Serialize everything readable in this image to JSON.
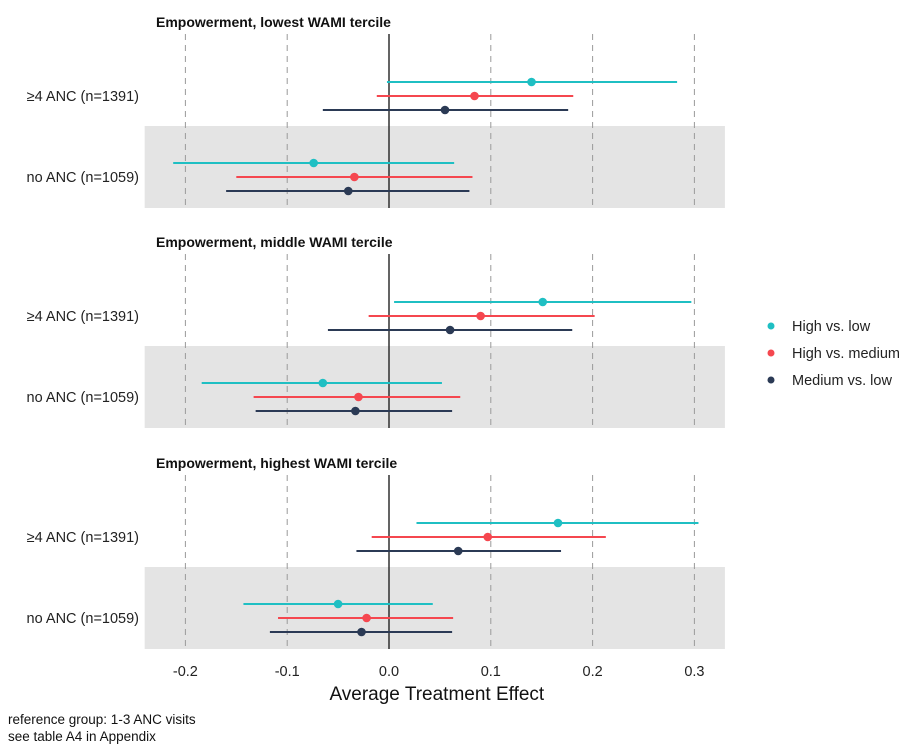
{
  "chart_data": {
    "type": "forest",
    "xlabel": "Average Treatment Effect",
    "xlim": [
      -0.24,
      0.33
    ],
    "xticks": [
      -0.2,
      -0.1,
      0.0,
      0.1,
      0.2,
      0.3
    ],
    "xtick_labels": [
      "-0.2",
      "-0.1",
      "0.0",
      "0.1",
      "0.2",
      "0.3"
    ],
    "vertical_reference_line": 0,
    "grid": "dashed vertical at x ticks",
    "legend_position": "right",
    "series": [
      {
        "name": "High vs. low",
        "color": "#1fbfc3"
      },
      {
        "name": "High vs. medium",
        "color": "#f5474f"
      },
      {
        "name": "Medium vs. low",
        "color": "#2b3a55"
      }
    ],
    "panels": [
      {
        "title": "Empowerment, lowest WAMI tercile",
        "rows": [
          {
            "label": "≥4 ANC (n=1391)",
            "shaded": false,
            "estimates": [
              {
                "series": "High vs. low",
                "est": 0.14,
                "lo": -0.002,
                "hi": 0.283
              },
              {
                "series": "High vs. medium",
                "est": 0.084,
                "lo": -0.012,
                "hi": 0.181
              },
              {
                "series": "Medium vs. low",
                "est": 0.055,
                "lo": -0.065,
                "hi": 0.176
              }
            ]
          },
          {
            "label": "no ANC (n=1059)",
            "shaded": true,
            "estimates": [
              {
                "series": "High vs. low",
                "est": -0.074,
                "lo": -0.212,
                "hi": 0.064
              },
              {
                "series": "High vs. medium",
                "est": -0.034,
                "lo": -0.15,
                "hi": 0.082
              },
              {
                "series": "Medium vs. low",
                "est": -0.04,
                "lo": -0.16,
                "hi": 0.079
              }
            ]
          }
        ]
      },
      {
        "title": "Empowerment, middle WAMI tercile",
        "rows": [
          {
            "label": "≥4 ANC (n=1391)",
            "shaded": false,
            "estimates": [
              {
                "series": "High vs. low",
                "est": 0.151,
                "lo": 0.005,
                "hi": 0.297
              },
              {
                "series": "High vs. medium",
                "est": 0.09,
                "lo": -0.02,
                "hi": 0.202
              },
              {
                "series": "Medium vs. low",
                "est": 0.06,
                "lo": -0.06,
                "hi": 0.18
              }
            ]
          },
          {
            "label": "no ANC (n=1059)",
            "shaded": true,
            "estimates": [
              {
                "series": "High vs. low",
                "est": -0.065,
                "lo": -0.184,
                "hi": 0.052
              },
              {
                "series": "High vs. medium",
                "est": -0.03,
                "lo": -0.133,
                "hi": 0.07
              },
              {
                "series": "Medium vs. low",
                "est": -0.033,
                "lo": -0.131,
                "hi": 0.062
              }
            ]
          }
        ]
      },
      {
        "title": "Empowerment, highest WAMI tercile",
        "rows": [
          {
            "label": "≥4 ANC (n=1391)",
            "shaded": false,
            "estimates": [
              {
                "series": "High vs. low",
                "est": 0.166,
                "lo": 0.027,
                "hi": 0.304
              },
              {
                "series": "High vs. medium",
                "est": 0.097,
                "lo": -0.017,
                "hi": 0.213
              },
              {
                "series": "Medium vs. low",
                "est": 0.068,
                "lo": -0.032,
                "hi": 0.169
              }
            ]
          },
          {
            "label": "no ANC (n=1059)",
            "shaded": true,
            "estimates": [
              {
                "series": "High vs. low",
                "est": -0.05,
                "lo": -0.143,
                "hi": 0.043
              },
              {
                "series": "High vs. medium",
                "est": -0.022,
                "lo": -0.109,
                "hi": 0.063
              },
              {
                "series": "Medium vs. low",
                "est": -0.027,
                "lo": -0.117,
                "hi": 0.062
              }
            ]
          }
        ]
      }
    ]
  },
  "caption": {
    "line1": "reference group: 1-3 ANC visits",
    "line2": "see table A4 in Appendix"
  }
}
